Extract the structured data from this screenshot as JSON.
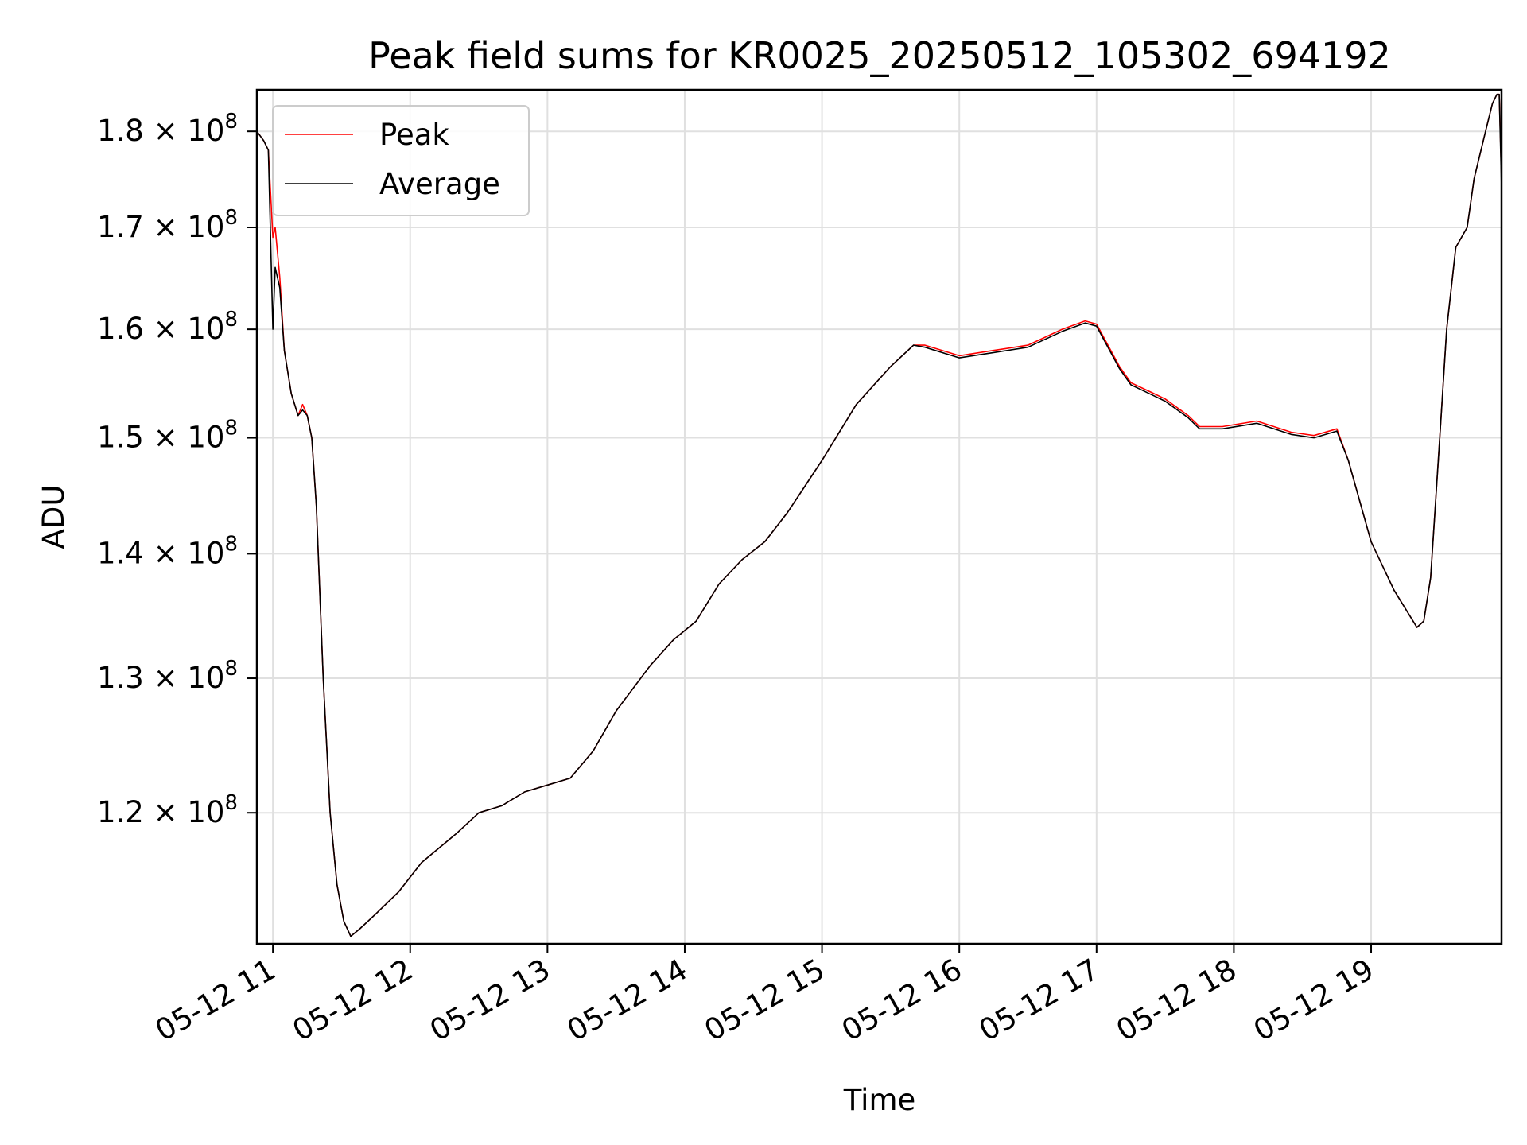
{
  "chart_data": {
    "type": "line",
    "title": "Peak field sums for KR0025_20250512_105302_694192",
    "xlabel": "Time",
    "ylabel": "ADU",
    "y_scale": "log",
    "ylim": [
      111000000.0,
      184500000.0
    ],
    "xlim": [
      "2025-05-12 10:53",
      "2025-05-12 19:57"
    ],
    "grid": true,
    "legend_position": "top-left",
    "colors": {
      "Peak": "#ff0000",
      "Average": "#000000"
    },
    "x_ticks": [
      "05-12 11",
      "05-12 12",
      "05-12 13",
      "05-12 14",
      "05-12 15",
      "05-12 16",
      "05-12 17",
      "05-12 18",
      "05-12 19"
    ],
    "y_ticks": [
      {
        "value": 120000000.0,
        "mantissa": "1.2",
        "exponent": "8"
      },
      {
        "value": 130000000.0,
        "mantissa": "1.3",
        "exponent": "8"
      },
      {
        "value": 140000000.0,
        "mantissa": "1.4",
        "exponent": "8"
      },
      {
        "value": 150000000.0,
        "mantissa": "1.5",
        "exponent": "8"
      },
      {
        "value": 160000000.0,
        "mantissa": "1.6",
        "exponent": "8"
      },
      {
        "value": 170000000.0,
        "mantissa": "1.7",
        "exponent": "8"
      },
      {
        "value": 180000000.0,
        "mantissa": "1.8",
        "exponent": "8"
      }
    ],
    "series": [
      {
        "name": "Peak",
        "x": [
          "2025-05-12 10:53",
          "2025-05-12 10:56",
          "2025-05-12 10:58",
          "2025-05-12 11:00",
          "2025-05-12 11:01",
          "2025-05-12 11:03",
          "2025-05-12 11:05",
          "2025-05-12 11:08",
          "2025-05-12 11:11",
          "2025-05-12 11:13",
          "2025-05-12 11:15",
          "2025-05-12 11:17",
          "2025-05-12 11:19",
          "2025-05-12 11:22",
          "2025-05-12 11:25",
          "2025-05-12 11:28",
          "2025-05-12 11:31",
          "2025-05-12 11:34",
          "2025-05-12 11:38",
          "2025-05-12 11:45",
          "2025-05-12 11:55",
          "2025-05-12 12:05",
          "2025-05-12 12:20",
          "2025-05-12 12:30",
          "2025-05-12 12:40",
          "2025-05-12 12:50",
          "2025-05-12 13:00",
          "2025-05-12 13:10",
          "2025-05-12 13:20",
          "2025-05-12 13:30",
          "2025-05-12 13:45",
          "2025-05-12 13:55",
          "2025-05-12 14:05",
          "2025-05-12 14:15",
          "2025-05-12 14:25",
          "2025-05-12 14:35",
          "2025-05-12 14:45",
          "2025-05-12 15:00",
          "2025-05-12 15:15",
          "2025-05-12 15:30",
          "2025-05-12 15:40",
          "2025-05-12 15:45",
          "2025-05-12 16:00",
          "2025-05-12 16:15",
          "2025-05-12 16:30",
          "2025-05-12 16:45",
          "2025-05-12 16:55",
          "2025-05-12 17:00",
          "2025-05-12 17:10",
          "2025-05-12 17:15",
          "2025-05-12 17:20",
          "2025-05-12 17:25",
          "2025-05-12 17:30",
          "2025-05-12 17:40",
          "2025-05-12 17:45",
          "2025-05-12 17:55",
          "2025-05-12 18:10",
          "2025-05-12 18:25",
          "2025-05-12 18:35",
          "2025-05-12 18:45",
          "2025-05-12 18:50",
          "2025-05-12 19:00",
          "2025-05-12 19:10",
          "2025-05-12 19:20",
          "2025-05-12 19:23",
          "2025-05-12 19:26",
          "2025-05-12 19:30",
          "2025-05-12 19:33",
          "2025-05-12 19:37",
          "2025-05-12 19:42",
          "2025-05-12 19:45",
          "2025-05-12 19:50",
          "2025-05-12 19:53",
          "2025-05-12 19:55",
          "2025-05-12 19:56",
          "2025-05-12 19:57"
        ],
        "values": [
          180000000.0,
          179000000.0,
          178000000.0,
          169000000.0,
          170000000.0,
          165000000.0,
          158000000.0,
          154000000.0,
          152000000.0,
          153000000.0,
          152000000.0,
          150000000.0,
          144000000.0,
          130000000.0,
          120000000.0,
          115000000.0,
          112500000.0,
          111500000.0,
          112000000.0,
          113000000.0,
          114500000.0,
          116500000.0,
          118500000.0,
          120000000.0,
          120500000.0,
          121500000.0,
          122000000.0,
          122500000.0,
          124500000.0,
          127500000.0,
          131000000.0,
          133000000.0,
          134500000.0,
          137500000.0,
          139500000.0,
          141000000.0,
          143500000.0,
          148000000.0,
          153000000.0,
          156500000.0,
          158500000.0,
          158500000.0,
          157500000.0,
          158000000.0,
          158500000.0,
          160000000.0,
          160800000.0,
          160500000.0,
          156500000.0,
          155000000.0,
          154500000.0,
          154000000.0,
          153500000.0,
          152000000.0,
          151000000.0,
          151000000.0,
          151500000.0,
          150500000.0,
          150200000.0,
          150800000.0,
          148000000.0,
          141000000.0,
          137000000.0,
          134000000.0,
          134500000.0,
          138000000.0,
          150000000.0,
          160000000.0,
          168000000.0,
          170000000.0,
          175000000.0,
          180000000.0,
          183000000.0,
          184000000.0,
          184000000.0,
          175000000.0
        ]
      },
      {
        "name": "Average",
        "x": [
          "2025-05-12 10:53",
          "2025-05-12 10:56",
          "2025-05-12 10:58",
          "2025-05-12 11:00",
          "2025-05-12 11:01",
          "2025-05-12 11:03",
          "2025-05-12 11:05",
          "2025-05-12 11:08",
          "2025-05-12 11:11",
          "2025-05-12 11:13",
          "2025-05-12 11:15",
          "2025-05-12 11:17",
          "2025-05-12 11:19",
          "2025-05-12 11:22",
          "2025-05-12 11:25",
          "2025-05-12 11:28",
          "2025-05-12 11:31",
          "2025-05-12 11:34",
          "2025-05-12 11:38",
          "2025-05-12 11:45",
          "2025-05-12 11:55",
          "2025-05-12 12:05",
          "2025-05-12 12:20",
          "2025-05-12 12:30",
          "2025-05-12 12:40",
          "2025-05-12 12:50",
          "2025-05-12 13:00",
          "2025-05-12 13:10",
          "2025-05-12 13:20",
          "2025-05-12 13:30",
          "2025-05-12 13:45",
          "2025-05-12 13:55",
          "2025-05-12 14:05",
          "2025-05-12 14:15",
          "2025-05-12 14:25",
          "2025-05-12 14:35",
          "2025-05-12 14:45",
          "2025-05-12 15:00",
          "2025-05-12 15:15",
          "2025-05-12 15:30",
          "2025-05-12 15:40",
          "2025-05-12 15:45",
          "2025-05-12 16:00",
          "2025-05-12 16:15",
          "2025-05-12 16:30",
          "2025-05-12 16:45",
          "2025-05-12 16:55",
          "2025-05-12 17:00",
          "2025-05-12 17:10",
          "2025-05-12 17:15",
          "2025-05-12 17:20",
          "2025-05-12 17:25",
          "2025-05-12 17:30",
          "2025-05-12 17:40",
          "2025-05-12 17:45",
          "2025-05-12 17:55",
          "2025-05-12 18:10",
          "2025-05-12 18:25",
          "2025-05-12 18:35",
          "2025-05-12 18:45",
          "2025-05-12 18:50",
          "2025-05-12 19:00",
          "2025-05-12 19:10",
          "2025-05-12 19:20",
          "2025-05-12 19:23",
          "2025-05-12 19:26",
          "2025-05-12 19:30",
          "2025-05-12 19:33",
          "2025-05-12 19:37",
          "2025-05-12 19:42",
          "2025-05-12 19:45",
          "2025-05-12 19:50",
          "2025-05-12 19:53",
          "2025-05-12 19:55",
          "2025-05-12 19:56",
          "2025-05-12 19:57"
        ],
        "values": [
          180000000.0,
          179000000.0,
          178000000.0,
          160000000.0,
          166000000.0,
          164000000.0,
          158000000.0,
          154000000.0,
          152000000.0,
          152500000.0,
          152000000.0,
          150000000.0,
          144000000.0,
          130000000.0,
          120000000.0,
          115000000.0,
          112500000.0,
          111500000.0,
          112000000.0,
          113000000.0,
          114500000.0,
          116500000.0,
          118500000.0,
          120000000.0,
          120500000.0,
          121500000.0,
          122000000.0,
          122500000.0,
          124500000.0,
          127500000.0,
          131000000.0,
          133000000.0,
          134500000.0,
          137500000.0,
          139500000.0,
          141000000.0,
          143500000.0,
          148000000.0,
          153000000.0,
          156500000.0,
          158500000.0,
          158300000.0,
          157300000.0,
          157800000.0,
          158300000.0,
          159800000.0,
          160600000.0,
          160300000.0,
          156300000.0,
          154800000.0,
          154300000.0,
          153800000.0,
          153300000.0,
          151800000.0,
          150800000.0,
          150800000.0,
          151300000.0,
          150300000.0,
          150000000.0,
          150600000.0,
          148000000.0,
          141000000.0,
          137000000.0,
          134000000.0,
          134500000.0,
          138000000.0,
          150000000.0,
          160000000.0,
          168000000.0,
          170000000.0,
          175000000.0,
          180000000.0,
          183000000.0,
          184000000.0,
          184000000.0,
          174000000.0
        ]
      }
    ]
  }
}
